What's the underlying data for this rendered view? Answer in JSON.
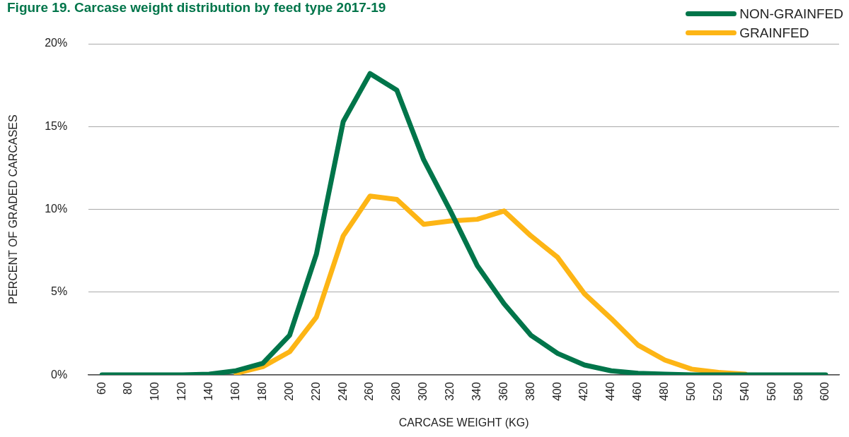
{
  "chart_data": {
    "type": "line",
    "title": "Figure 19. Carcase weight distribution by feed type 2017-19",
    "xlabel": "CARCASE WEIGHT (KG)",
    "ylabel": "PERCENT OF GRADED CARCASES",
    "categories": [
      "60",
      "80",
      "100",
      "120",
      "140",
      "160",
      "180",
      "200",
      "220",
      "240",
      "260",
      "280",
      "300",
      "320",
      "340",
      "360",
      "380",
      "400",
      "420",
      "440",
      "460",
      "480",
      "500",
      "520",
      "540",
      "560",
      "580",
      "600"
    ],
    "series": [
      {
        "name": "GRAINFED",
        "color": "#fdb515",
        "values": [
          null,
          null,
          null,
          null,
          null,
          0.1,
          0.5,
          1.4,
          3.5,
          8.4,
          10.8,
          10.6,
          9.1,
          9.3,
          9.4,
          9.9,
          8.4,
          7.1,
          4.9,
          3.4,
          1.8,
          0.9,
          0.35,
          0.15,
          0.05,
          null,
          null,
          null
        ]
      },
      {
        "name": "NON-GRAINFED",
        "color": "#00754a",
        "values": [
          0,
          0,
          0,
          0,
          0.05,
          0.25,
          0.7,
          2.4,
          7.3,
          15.3,
          18.2,
          17.2,
          13.0,
          9.9,
          6.6,
          4.3,
          2.4,
          1.3,
          0.6,
          0.25,
          0.1,
          0.05,
          0,
          0,
          0,
          0,
          0,
          0
        ]
      }
    ],
    "ylim": [
      0,
      20
    ],
    "yticks": [
      {
        "value": 0,
        "label": "0%"
      },
      {
        "value": 5,
        "label": "5%"
      },
      {
        "value": 10,
        "label": "10%"
      },
      {
        "value": 15,
        "label": "15%"
      },
      {
        "value": 20,
        "label": "20%"
      }
    ],
    "grid": "y",
    "legend": "top right",
    "marker": "none",
    "line_style": "solid"
  }
}
